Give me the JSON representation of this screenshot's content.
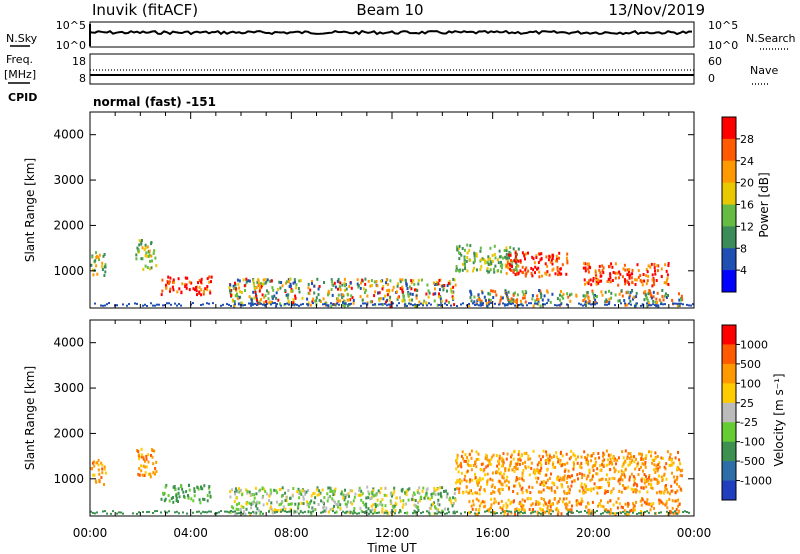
{
  "header": {
    "station": "Inuvik (fitACF)",
    "beam": "Beam 10",
    "date": "13/Nov/2019"
  },
  "nsky_panel": {
    "left_label": "N.Sky",
    "right_label": "N.Search",
    "left_ticks": [
      "10^5",
      "10^0"
    ],
    "right_ticks": [
      "10^5",
      "10^0"
    ]
  },
  "freq_panel": {
    "left_label_line1": "Freq.",
    "left_label_line2": "[MHz]",
    "right_label": "Nave",
    "left_ticks": [
      "18",
      "8"
    ],
    "right_ticks": [
      "60",
      "0"
    ]
  },
  "cpid": {
    "label": "CPID",
    "value": "normal (fast) -151"
  },
  "x_axis": {
    "label": "Time UT",
    "tick_labels": [
      "00:00",
      "04:00",
      "08:00",
      "12:00",
      "16:00",
      "20:00",
      "00:00"
    ]
  },
  "chart_data": [
    {
      "type": "heatmap",
      "name": "power",
      "ylabel": "Slant Range [km]",
      "ylim": [
        180,
        4500
      ],
      "yticks": [
        1000,
        2000,
        3000,
        4000
      ],
      "x_range_hours": [
        0,
        24
      ],
      "colorbar": {
        "label": "Power [dB]",
        "tick_labels": [
          "4",
          "8",
          "12",
          "16",
          "20",
          "24",
          "28"
        ],
        "colors": [
          "#0000ff",
          "#1f4fb2",
          "#3c8c5a",
          "#66bb44",
          "#e8c800",
          "#ff9900",
          "#ff5a00",
          "#ff0000"
        ]
      },
      "echo_regions": [
        {
          "t": [
            0.0,
            0.6
          ],
          "range": [
            900,
            1450
          ],
          "level": "green-orange"
        },
        {
          "t": [
            1.8,
            2.6
          ],
          "range": [
            1050,
            1700
          ],
          "level": "green-orange"
        },
        {
          "t": [
            2.8,
            4.8
          ],
          "range": [
            500,
            900
          ],
          "level": "red"
        },
        {
          "t": [
            5.5,
            14.5
          ],
          "range": [
            250,
            850
          ],
          "level": "mixed-green-red"
        },
        {
          "t": [
            14.5,
            17.0
          ],
          "range": [
            1000,
            1600
          ],
          "level": "green"
        },
        {
          "t": [
            16.5,
            19.0
          ],
          "range": [
            900,
            1450
          ],
          "level": "red"
        },
        {
          "t": [
            19.5,
            23.0
          ],
          "range": [
            700,
            1200
          ],
          "level": "red"
        },
        {
          "t": [
            15.0,
            23.5
          ],
          "range": [
            250,
            600
          ],
          "level": "mixed-green-orange"
        }
      ]
    },
    {
      "type": "heatmap",
      "name": "velocity",
      "ylabel": "Slant Range [km]",
      "ylim": [
        180,
        4500
      ],
      "yticks": [
        1000,
        2000,
        3000,
        4000
      ],
      "x_range_hours": [
        0,
        24
      ],
      "colorbar": {
        "label": "Velocity [m s⁻¹]",
        "tick_labels": [
          "1000",
          "500",
          "100",
          "25",
          "-25",
          "-100",
          "-500",
          "-1000"
        ],
        "colors": [
          "#1f3fbf",
          "#2e6ea8",
          "#3c9050",
          "#66cc33",
          "#bbbbbb",
          "#ffcc00",
          "#ff9900",
          "#ff5a00",
          "#ff0000"
        ]
      },
      "echo_regions": [
        {
          "t": [
            0.0,
            0.6
          ],
          "range": [
            900,
            1450
          ],
          "level": "orange"
        },
        {
          "t": [
            1.8,
            2.6
          ],
          "range": [
            1050,
            1700
          ],
          "level": "orange"
        },
        {
          "t": [
            2.8,
            4.8
          ],
          "range": [
            500,
            900
          ],
          "level": "green"
        },
        {
          "t": [
            5.5,
            14.5
          ],
          "range": [
            250,
            850
          ],
          "level": "green-grey"
        },
        {
          "t": [
            14.5,
            23.5
          ],
          "range": [
            700,
            1650
          ],
          "level": "orange"
        },
        {
          "t": [
            15.0,
            23.5
          ],
          "range": [
            250,
            600
          ],
          "level": "orange"
        }
      ]
    }
  ]
}
